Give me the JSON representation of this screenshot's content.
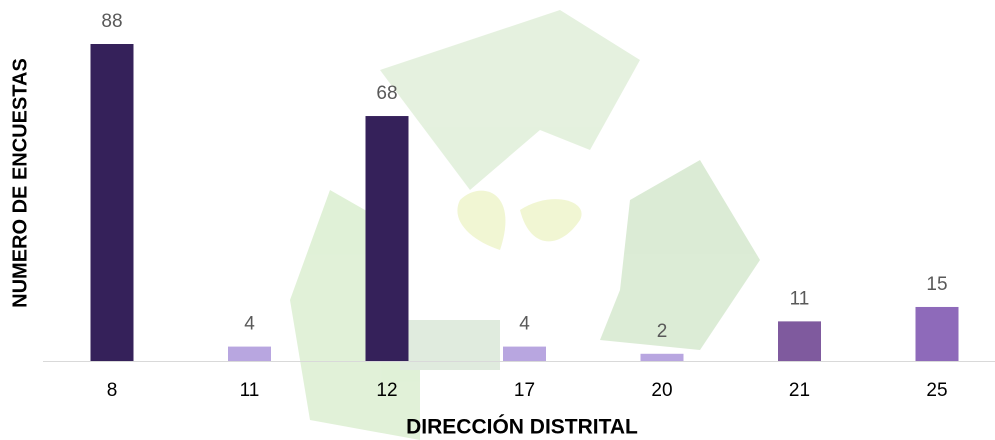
{
  "chart_data": {
    "type": "bar",
    "x_label": "DIRECCIÓN DISTRITAL",
    "y_label": "NUMERO DE ENCUESTAS",
    "categories": [
      "8",
      "11",
      "12",
      "17",
      "20",
      "21",
      "25"
    ],
    "values": [
      88,
      4,
      68,
      4,
      2,
      11,
      15
    ],
    "colors": [
      "#35215a",
      "#b8a6e0",
      "#35215a",
      "#b8a6e0",
      "#b8a6e0",
      "#7f5a9e",
      "#8e6aba"
    ]
  }
}
